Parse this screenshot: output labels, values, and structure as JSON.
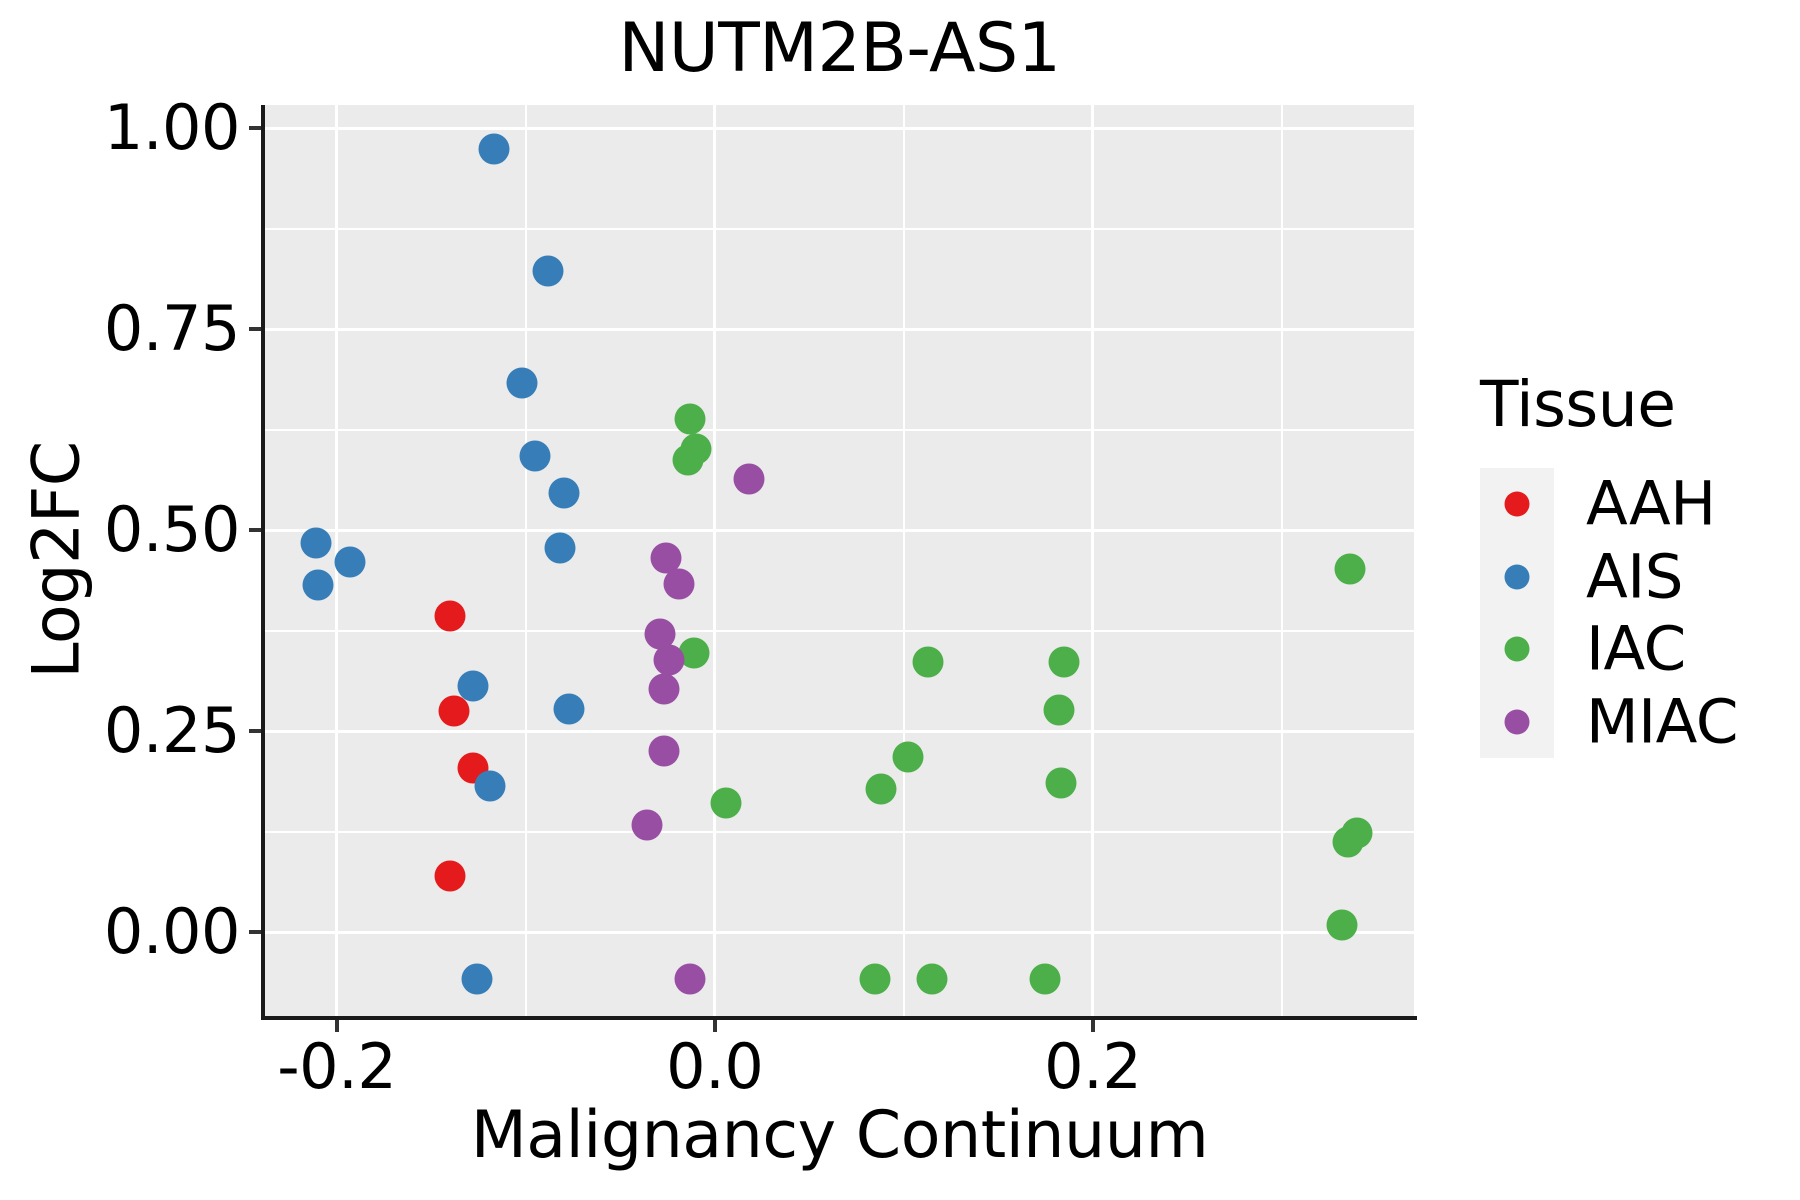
{
  "title": "NUTM2B-AS1",
  "chart_data": {
    "type": "scatter",
    "title": "NUTM2B-AS1",
    "xlabel": "Malignancy Continuum",
    "ylabel": "Log2FC",
    "xlim": [
      -0.238,
      0.37
    ],
    "ylim": [
      -0.104,
      1.029
    ],
    "grid": "white major+minor gridlines on grey panel, legend right",
    "panel_color": "#EBEBEB",
    "gridline_color": "#FFFFFF",
    "x_major_ticks": [
      -0.2,
      0.0,
      0.2
    ],
    "x_tick_labels": [
      "-0.2",
      "0.0",
      "0.2"
    ],
    "x_minor_ticks": [
      -0.1,
      0.1,
      0.3
    ],
    "y_major_ticks": [
      0.0,
      0.25,
      0.5,
      0.75,
      1.0
    ],
    "y_tick_labels": [
      "0.00",
      "0.25",
      "0.50",
      "0.75",
      "1.00"
    ],
    "y_minor_ticks": [
      0.125,
      0.375,
      0.625,
      0.875
    ],
    "legend_title": "Tissue",
    "legend_position": "right",
    "series": [
      {
        "name": "AAH",
        "color": "#E41A1C",
        "points": [
          [
            -0.14,
            0.394
          ],
          [
            -0.138,
            0.275
          ],
          [
            -0.128,
            0.205
          ],
          [
            -0.14,
            0.07
          ]
        ]
      },
      {
        "name": "AIS",
        "color": "#377EB8",
        "points": [
          [
            -0.117,
            0.974
          ],
          [
            -0.088,
            0.822
          ],
          [
            -0.102,
            0.683
          ],
          [
            -0.095,
            0.593
          ],
          [
            -0.08,
            0.546
          ],
          [
            -0.082,
            0.478
          ],
          [
            -0.211,
            0.484
          ],
          [
            -0.193,
            0.461
          ],
          [
            -0.21,
            0.432
          ],
          [
            -0.128,
            0.307
          ],
          [
            -0.077,
            0.278
          ],
          [
            -0.119,
            0.182
          ],
          [
            -0.126,
            -0.058
          ]
        ]
      },
      {
        "name": "IAC",
        "color": "#4DAF4A",
        "points": [
          [
            -0.013,
            0.638
          ],
          [
            -0.014,
            0.588
          ],
          [
            -0.01,
            0.601
          ],
          [
            -0.011,
            0.347
          ],
          [
            0.006,
            0.161
          ],
          [
            0.113,
            0.336
          ],
          [
            0.102,
            0.218
          ],
          [
            0.088,
            0.178
          ],
          [
            0.085,
            -0.058
          ],
          [
            0.115,
            -0.058
          ],
          [
            0.185,
            0.336
          ],
          [
            0.182,
            0.276
          ],
          [
            0.183,
            0.186
          ],
          [
            0.175,
            -0.058
          ],
          [
            0.336,
            0.452
          ],
          [
            0.335,
            0.113
          ],
          [
            0.34,
            0.124
          ],
          [
            0.332,
            0.009
          ]
        ]
      },
      {
        "name": "MIAC",
        "color": "#984EA3",
        "points": [
          [
            0.018,
            0.564
          ],
          [
            -0.026,
            0.466
          ],
          [
            -0.019,
            0.433
          ],
          [
            -0.029,
            0.371
          ],
          [
            -0.024,
            0.339
          ],
          [
            -0.027,
            0.303
          ],
          [
            -0.027,
            0.225
          ],
          [
            -0.036,
            0.134
          ],
          [
            -0.013,
            -0.058
          ]
        ]
      }
    ]
  }
}
